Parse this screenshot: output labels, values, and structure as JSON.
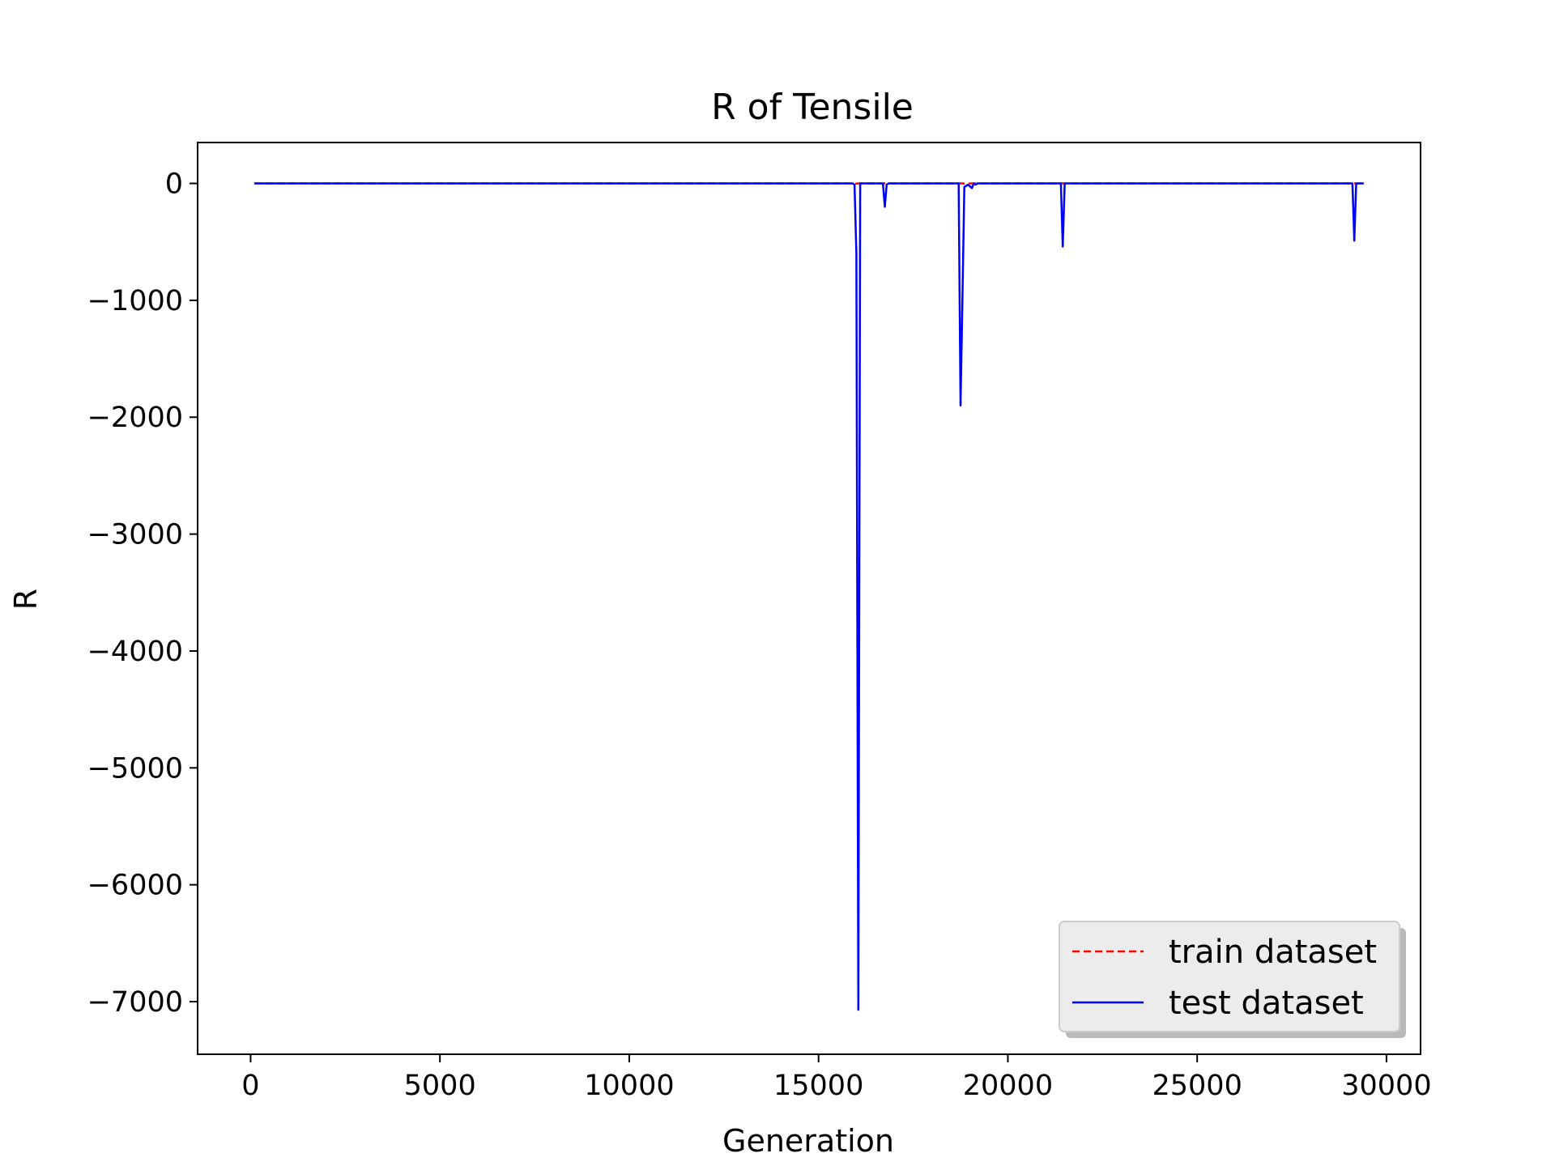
{
  "chart_data": {
    "type": "line",
    "title": "R of Tensile",
    "xlabel": "Generation",
    "ylabel": "R",
    "xlim": [
      -1400,
      30900
    ],
    "ylim": [
      -7450,
      350
    ],
    "xticks": [
      0,
      5000,
      10000,
      15000,
      20000,
      25000,
      30000
    ],
    "xtick_labels": [
      "0",
      "5000",
      "10000",
      "15000",
      "20000",
      "25000",
      "30000"
    ],
    "yticks": [
      0,
      -1000,
      -2000,
      -3000,
      -4000,
      -5000,
      -6000,
      -7000
    ],
    "ytick_labels": [
      "0",
      "−1000",
      "−2000",
      "−3000",
      "−4000",
      "−5000",
      "−6000",
      "−7000"
    ],
    "grid": false,
    "legend_position": "lower-right",
    "series": [
      {
        "name": "train dataset",
        "color": "#ff0000",
        "style": "dashed",
        "x": [
          100,
          15900,
          16000,
          16050,
          16100,
          18800,
          18850,
          18900,
          29400
        ],
        "y": [
          0,
          0,
          -2,
          0,
          0,
          0,
          -2,
          0,
          0
        ]
      },
      {
        "name": "test dataset",
        "color": "#0000ff",
        "style": "solid",
        "x": [
          100,
          15900,
          15950,
          16000,
          16050,
          16100,
          16700,
          16750,
          16800,
          16850,
          18700,
          18750,
          18800,
          18850,
          18900,
          18950,
          19050,
          19100,
          19150,
          19200,
          21400,
          21450,
          21500,
          29100,
          29150,
          29200,
          29250,
          29400
        ],
        "y": [
          0,
          0,
          -10,
          -600,
          -7070,
          0,
          0,
          -200,
          -10,
          0,
          0,
          -1900,
          -1000,
          -30,
          -20,
          -10,
          -40,
          0,
          -10,
          0,
          0,
          -540,
          0,
          0,
          -490,
          0,
          0,
          0
        ]
      }
    ]
  }
}
